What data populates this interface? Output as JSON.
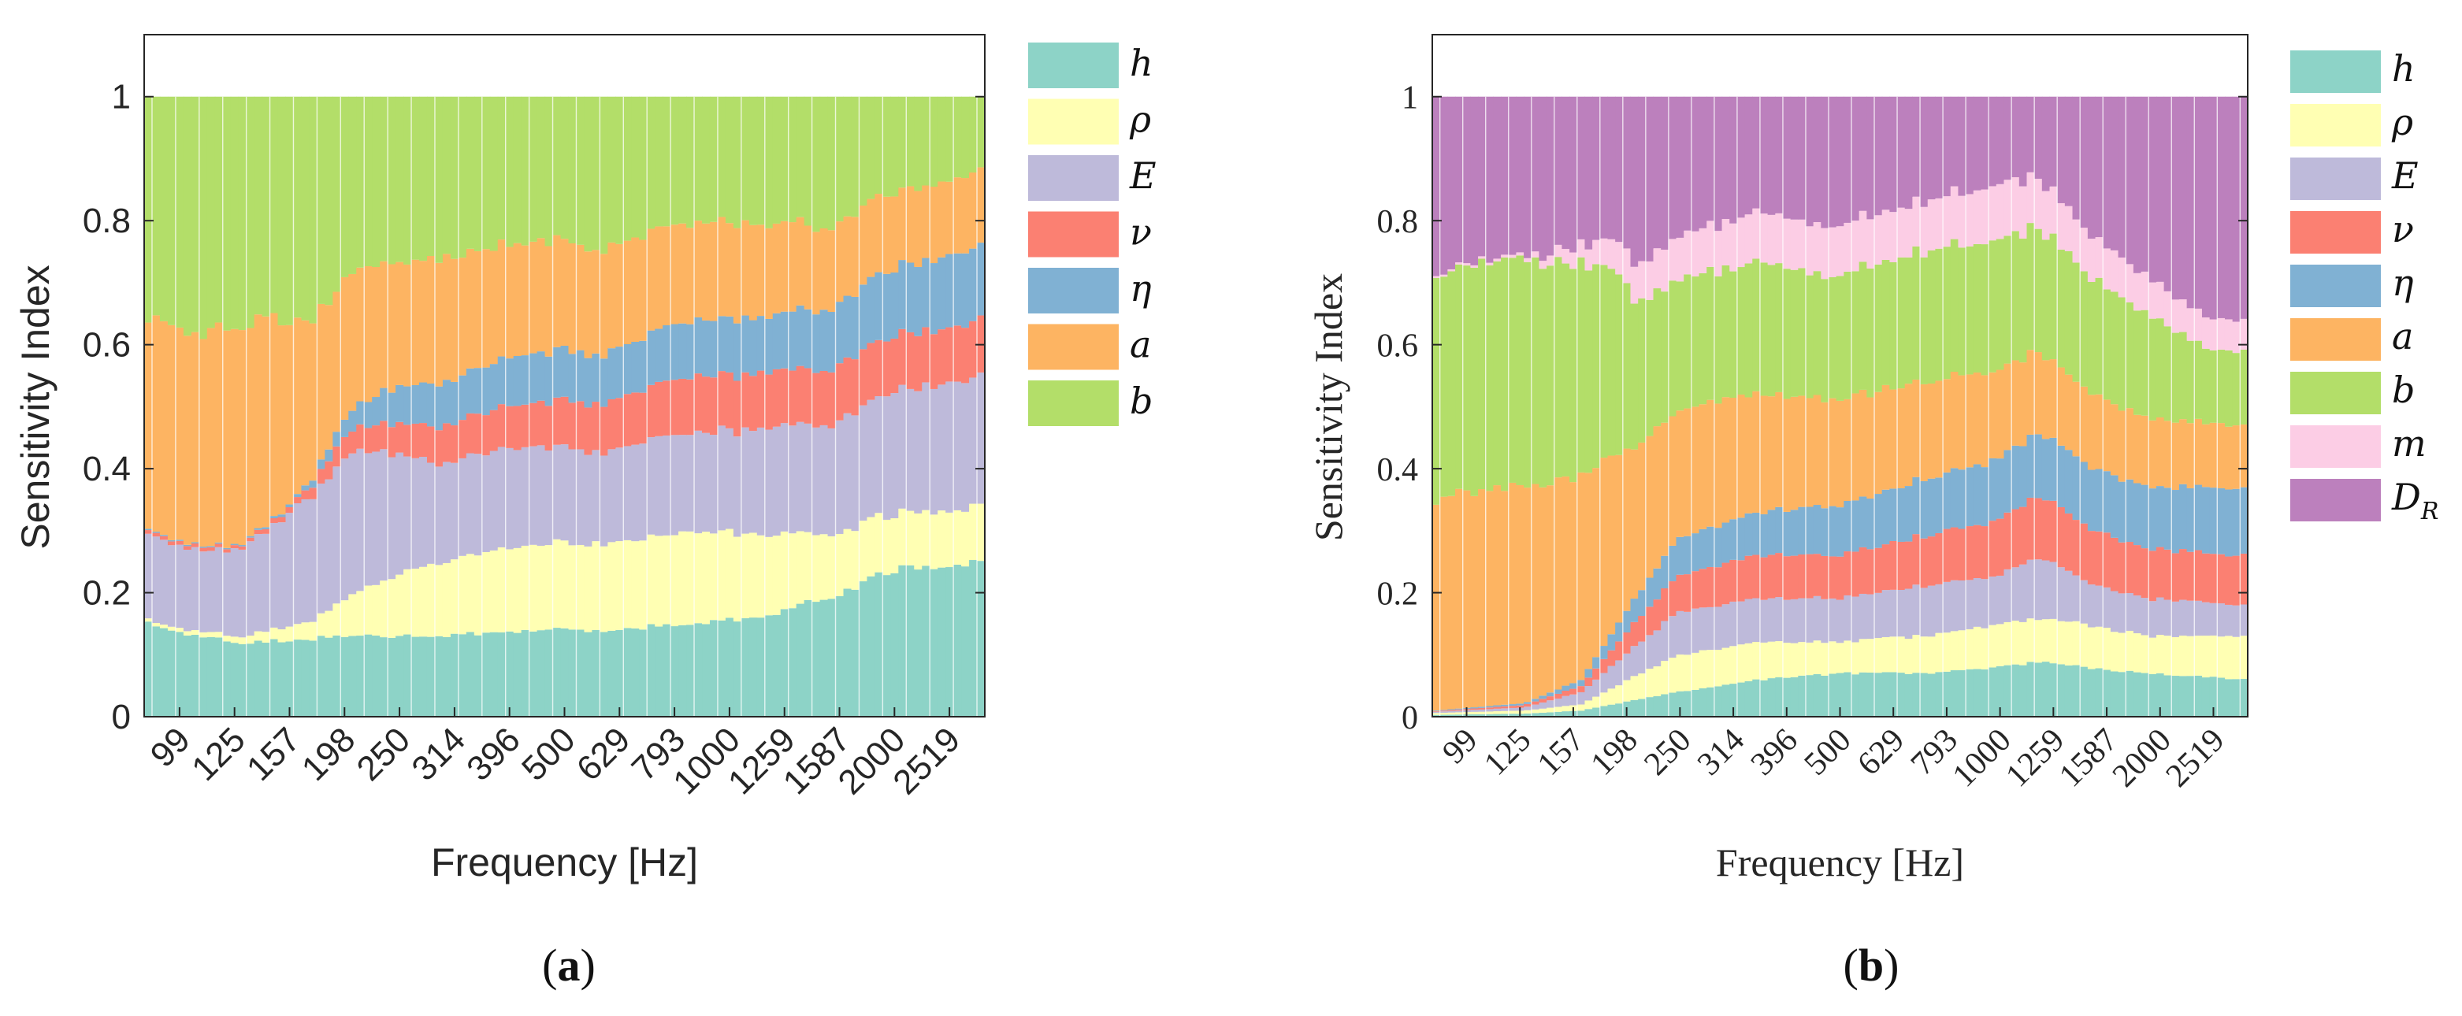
{
  "colors": {
    "h": "#8dd3c7",
    "rho": "#ffffb3",
    "E": "#bebada",
    "nu": "#fb8072",
    "eta": "#80b1d3",
    "a": "#fdb462",
    "b": "#b3de69",
    "m": "#fccde5",
    "DR": "#bc80bd",
    "axis": "#262626",
    "separator": "#ffffff"
  },
  "chart_data": [
    {
      "type": "bar",
      "stacked": true,
      "panel_label": "(a)",
      "panel_letter": "a",
      "xlabel": "Frequency [Hz]",
      "ylabel": "Sensitivity Index",
      "ylim": [
        0,
        1.1
      ],
      "yticks": [
        0,
        0.2,
        0.4,
        0.6,
        0.8,
        1
      ],
      "ytick_labels": [
        "0",
        "0.2",
        "0.4",
        "0.6",
        "0.8",
        "1"
      ],
      "xtick_labels": [
        "99",
        "125",
        "157",
        "198",
        "250",
        "314",
        "396",
        "500",
        "629",
        "793",
        "1000",
        "1259",
        "1587",
        "2000",
        "2519"
      ],
      "legend_position": "right-outside-top",
      "n_bars": 107,
      "x_range_hz": [
        80,
        2800
      ],
      "series": [
        {
          "name": "h",
          "label": "h",
          "color_key": "h",
          "anchors": [
            [
              0,
              0.15
            ],
            [
              0.06,
              0.13
            ],
            [
              0.11,
              0.12
            ],
            [
              0.25,
              0.13
            ],
            [
              0.35,
              0.13
            ],
            [
              0.45,
              0.14
            ],
            [
              0.55,
              0.14
            ],
            [
              0.65,
              0.15
            ],
            [
              0.74,
              0.16
            ],
            [
              0.83,
              0.2
            ],
            [
              0.9,
              0.24
            ],
            [
              1,
              0.25
            ]
          ]
        },
        {
          "name": "rho",
          "label": "ρ",
          "color_key": "rho",
          "anchors": [
            [
              0,
              0.005
            ],
            [
              0.11,
              0.01
            ],
            [
              0.2,
              0.03
            ],
            [
              0.25,
              0.07
            ],
            [
              0.32,
              0.11
            ],
            [
              0.45,
              0.14
            ],
            [
              0.55,
              0.14
            ],
            [
              0.65,
              0.15
            ],
            [
              0.74,
              0.13
            ],
            [
              0.83,
              0.1
            ],
            [
              0.9,
              0.09
            ],
            [
              1,
              0.09
            ]
          ]
        },
        {
          "name": "E",
          "label": "E",
          "color_key": "E",
          "anchors": [
            [
              0,
              0.14
            ],
            [
              0.06,
              0.13
            ],
            [
              0.11,
              0.14
            ],
            [
              0.18,
              0.19
            ],
            [
              0.22,
              0.22
            ],
            [
              0.25,
              0.23
            ],
            [
              0.35,
              0.16
            ],
            [
              0.45,
              0.16
            ],
            [
              0.55,
              0.15
            ],
            [
              0.65,
              0.16
            ],
            [
              0.74,
              0.17
            ],
            [
              0.83,
              0.18
            ],
            [
              0.9,
              0.2
            ],
            [
              1,
              0.21
            ]
          ]
        },
        {
          "name": "nu",
          "label": "ν",
          "color_key": "nu",
          "anchors": [
            [
              0,
              0.006
            ],
            [
              0.06,
              0.006
            ],
            [
              0.11,
              0.005
            ],
            [
              0.18,
              0.01
            ],
            [
              0.22,
              0.03
            ],
            [
              0.3,
              0.05
            ],
            [
              0.35,
              0.06
            ],
            [
              0.45,
              0.07
            ],
            [
              0.55,
              0.08
            ],
            [
              0.65,
              0.09
            ],
            [
              0.74,
              0.09
            ],
            [
              0.83,
              0.09
            ],
            [
              0.9,
              0.09
            ],
            [
              1,
              0.09
            ]
          ]
        },
        {
          "name": "eta",
          "label": "η",
          "color_key": "eta",
          "anchors": [
            [
              0,
              0.002
            ],
            [
              0.11,
              0.002
            ],
            [
              0.18,
              0.005
            ],
            [
              0.22,
              0.02
            ],
            [
              0.3,
              0.06
            ],
            [
              0.35,
              0.07
            ],
            [
              0.45,
              0.08
            ],
            [
              0.55,
              0.08
            ],
            [
              0.65,
              0.09
            ],
            [
              0.74,
              0.09
            ],
            [
              0.83,
              0.1
            ],
            [
              0.9,
              0.11
            ],
            [
              1,
              0.12
            ]
          ]
        },
        {
          "name": "a",
          "label": "a",
          "color_key": "a",
          "anchors": [
            [
              0,
              0.34
            ],
            [
              0.06,
              0.34
            ],
            [
              0.11,
              0.35
            ],
            [
              0.15,
              0.33
            ],
            [
              0.18,
              0.28
            ],
            [
              0.22,
              0.23
            ],
            [
              0.3,
              0.2
            ],
            [
              0.35,
              0.2
            ],
            [
              0.45,
              0.18
            ],
            [
              0.55,
              0.17
            ],
            [
              0.65,
              0.16
            ],
            [
              0.74,
              0.15
            ],
            [
              0.83,
              0.13
            ],
            [
              0.9,
              0.12
            ],
            [
              1,
              0.12
            ]
          ]
        },
        {
          "name": "b",
          "label": "b",
          "color_key": "b",
          "anchors": [
            [
              0,
              0.35
            ],
            [
              1,
              0.12
            ]
          ],
          "fill_remainder": true
        }
      ]
    },
    {
      "type": "bar",
      "stacked": true,
      "panel_label": "(b)",
      "panel_letter": "b",
      "xlabel": "Frequency [Hz]",
      "ylabel": "Sensitivity Index",
      "ylim": [
        0,
        1.1
      ],
      "yticks": [
        0,
        0.2,
        0.4,
        0.6,
        0.8,
        1
      ],
      "ytick_labels": [
        "0",
        "0.2",
        "0.4",
        "0.6",
        "0.8",
        "1"
      ],
      "xtick_labels": [
        "99",
        "125",
        "157",
        "198",
        "250",
        "314",
        "396",
        "500",
        "629",
        "793",
        "1000",
        "1259",
        "1587",
        "2000",
        "2519"
      ],
      "legend_position": "right-outside-top",
      "n_bars": 107,
      "x_range_hz": [
        80,
        2800
      ],
      "series": [
        {
          "name": "h",
          "label": "h",
          "color_key": "h",
          "anchors": [
            [
              0,
              0.003
            ],
            [
              0.11,
              0.005
            ],
            [
              0.18,
              0.01
            ],
            [
              0.22,
              0.02
            ],
            [
              0.3,
              0.04
            ],
            [
              0.4,
              0.06
            ],
            [
              0.5,
              0.07
            ],
            [
              0.6,
              0.07
            ],
            [
              0.7,
              0.08
            ],
            [
              0.75,
              0.09
            ],
            [
              0.8,
              0.08
            ],
            [
              0.88,
              0.07
            ],
            [
              1,
              0.06
            ]
          ]
        },
        {
          "name": "rho",
          "label": "ρ",
          "color_key": "rho",
          "anchors": [
            [
              0,
              0.003
            ],
            [
              0.11,
              0.005
            ],
            [
              0.18,
              0.01
            ],
            [
              0.25,
              0.04
            ],
            [
              0.3,
              0.06
            ],
            [
              0.4,
              0.06
            ],
            [
              0.5,
              0.05
            ],
            [
              0.6,
              0.06
            ],
            [
              0.7,
              0.07
            ],
            [
              0.75,
              0.07
            ],
            [
              0.8,
              0.07
            ],
            [
              0.88,
              0.06
            ],
            [
              1,
              0.07
            ]
          ]
        },
        {
          "name": "E",
          "label": "E",
          "color_key": "E",
          "anchors": [
            [
              0,
              0.002
            ],
            [
              0.11,
              0.005
            ],
            [
              0.18,
              0.02
            ],
            [
              0.25,
              0.05
            ],
            [
              0.3,
              0.07
            ],
            [
              0.4,
              0.07
            ],
            [
              0.5,
              0.07
            ],
            [
              0.6,
              0.08
            ],
            [
              0.7,
              0.08
            ],
            [
              0.75,
              0.1
            ],
            [
              0.8,
              0.07
            ],
            [
              0.88,
              0.06
            ],
            [
              1,
              0.05
            ]
          ]
        },
        {
          "name": "nu",
          "label": "ν",
          "color_key": "nu",
          "anchors": [
            [
              0,
              0.001
            ],
            [
              0.11,
              0.004
            ],
            [
              0.18,
              0.01
            ],
            [
              0.25,
              0.04
            ],
            [
              0.3,
              0.06
            ],
            [
              0.4,
              0.07
            ],
            [
              0.5,
              0.07
            ],
            [
              0.6,
              0.08
            ],
            [
              0.7,
              0.09
            ],
            [
              0.75,
              0.1
            ],
            [
              0.8,
              0.09
            ],
            [
              0.88,
              0.08
            ],
            [
              1,
              0.08
            ]
          ]
        },
        {
          "name": "eta",
          "label": "η",
          "color_key": "eta",
          "anchors": [
            [
              0,
              0.001
            ],
            [
              0.11,
              0.003
            ],
            [
              0.18,
              0.01
            ],
            [
              0.25,
              0.04
            ],
            [
              0.3,
              0.06
            ],
            [
              0.4,
              0.07
            ],
            [
              0.5,
              0.08
            ],
            [
              0.6,
              0.09
            ],
            [
              0.7,
              0.1
            ],
            [
              0.75,
              0.1
            ],
            [
              0.8,
              0.1
            ],
            [
              0.88,
              0.1
            ],
            [
              1,
              0.11
            ]
          ]
        },
        {
          "name": "a",
          "label": "a",
          "color_key": "a",
          "anchors": [
            [
              0,
              0.34
            ],
            [
              0.06,
              0.35
            ],
            [
              0.11,
              0.35
            ],
            [
              0.18,
              0.33
            ],
            [
              0.22,
              0.28
            ],
            [
              0.25,
              0.24
            ],
            [
              0.3,
              0.21
            ],
            [
              0.4,
              0.19
            ],
            [
              0.5,
              0.17
            ],
            [
              0.6,
              0.16
            ],
            [
              0.7,
              0.14
            ],
            [
              0.75,
              0.13
            ],
            [
              0.8,
              0.12
            ],
            [
              0.88,
              0.11
            ],
            [
              1,
              0.1
            ]
          ]
        },
        {
          "name": "b",
          "label": "b",
          "color_key": "b",
          "anchors": [
            [
              0,
              0.36
            ],
            [
              0.06,
              0.37
            ],
            [
              0.11,
              0.37
            ],
            [
              0.18,
              0.34
            ],
            [
              0.22,
              0.3
            ],
            [
              0.25,
              0.23
            ],
            [
              0.3,
              0.21
            ],
            [
              0.4,
              0.21
            ],
            [
              0.5,
              0.2
            ],
            [
              0.6,
              0.21
            ],
            [
              0.7,
              0.21
            ],
            [
              0.75,
              0.2
            ],
            [
              0.8,
              0.19
            ],
            [
              0.88,
              0.17
            ],
            [
              0.95,
              0.12
            ],
            [
              1,
              0.12
            ]
          ]
        },
        {
          "name": "m",
          "label": "m",
          "color_key": "m",
          "anchors": [
            [
              0,
              0.003
            ],
            [
              0.11,
              0.005
            ],
            [
              0.18,
              0.03
            ],
            [
              0.22,
              0.05
            ],
            [
              0.25,
              0.06
            ],
            [
              0.3,
              0.07
            ],
            [
              0.4,
              0.08
            ],
            [
              0.5,
              0.08
            ],
            [
              0.6,
              0.08
            ],
            [
              0.7,
              0.09
            ],
            [
              0.75,
              0.08
            ],
            [
              0.8,
              0.07
            ],
            [
              0.88,
              0.06
            ],
            [
              0.95,
              0.05
            ],
            [
              1,
              0.05
            ]
          ]
        },
        {
          "name": "DR",
          "label": "D",
          "label_sub": "R",
          "color_key": "DR",
          "anchors": [
            [
              0,
              0.29
            ],
            [
              1,
              0.36
            ]
          ],
          "fill_remainder": true
        }
      ]
    }
  ]
}
